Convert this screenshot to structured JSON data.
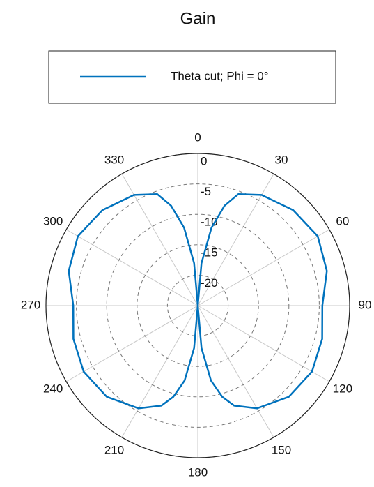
{
  "chart_data": {
    "type": "polar",
    "title": "Gain",
    "series": [
      {
        "name": "Theta cut; Phi = 0°",
        "color": "#0072bd",
        "theta": [
          0,
          5,
          10,
          15,
          20,
          30,
          45,
          60,
          75,
          90,
          105,
          120,
          135,
          150,
          160,
          165,
          170,
          175,
          180,
          185,
          190,
          195,
          200,
          210,
          225,
          240,
          255,
          270,
          285,
          300,
          315,
          330,
          340,
          345,
          350,
          355,
          360
        ],
        "values": [
          -25,
          -18,
          -12,
          -8,
          -5.5,
          -4,
          -2.8,
          -2.2,
          -3,
          -4.5,
          -3.8,
          -3.3,
          -3.8,
          -5.5,
          -7.5,
          -9.5,
          -12.5,
          -18,
          -25,
          -18,
          -12.5,
          -9.5,
          -7.5,
          -5.5,
          -3.8,
          -3.3,
          -3.8,
          -4.5,
          -3,
          -2.2,
          -2.8,
          -4,
          -5.5,
          -8,
          -12,
          -18,
          -25
        ]
      }
    ],
    "rlim": [
      -25,
      0
    ],
    "rticks": [
      -20,
      -15,
      -10,
      -5,
      0
    ],
    "thetaticks": [
      0,
      30,
      60,
      90,
      120,
      150,
      180,
      210,
      240,
      270,
      300,
      330
    ],
    "grid": true
  }
}
